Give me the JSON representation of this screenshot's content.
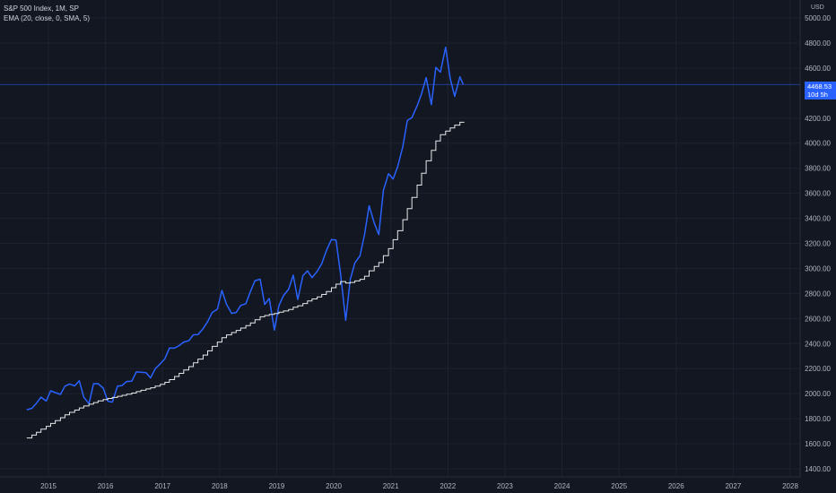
{
  "legend": {
    "symbol_line": "S&P 500 Index, 1M, SP",
    "indicator_line": "EMA (20, close, 0, SMA, 5)"
  },
  "price_axis": {
    "unit": "USD",
    "current_price": "4468.53",
    "countdown": "10d 5h"
  },
  "colors": {
    "background": "#131722",
    "price_line": "#2962ff",
    "ema_line": "#ffffff",
    "grid": "#1e2230",
    "axis_border": "#2a2e39",
    "badge": "#2962ff"
  },
  "chart_data": {
    "type": "line",
    "title": "S&P 500 Index, 1M, SP",
    "ylabel": "USD",
    "ylim": [
      1350,
      5050
    ],
    "xlim": [
      2014.6,
      2028.25
    ],
    "x_ticks": [
      "2015",
      "2016",
      "2017",
      "2018",
      "2019",
      "2020",
      "2021",
      "2022",
      "2023",
      "2024",
      "2025",
      "2026",
      "2027",
      "2028"
    ],
    "y_ticks": [
      "5000.00",
      "4800.00",
      "4600.00",
      "4200.00",
      "4000.00",
      "3800.00",
      "3600.00",
      "3400.00",
      "3200.00",
      "3000.00",
      "2800.00",
      "2600.00",
      "2400.00",
      "2200.00",
      "2000.00",
      "1800.00",
      "1600.00",
      "1400.00"
    ],
    "grid": true,
    "series": [
      {
        "name": "S&P 500 Index",
        "style": "line",
        "points": [
          [
            2014.62,
            1872
          ],
          [
            2014.71,
            1883
          ],
          [
            2014.79,
            1923
          ],
          [
            2014.87,
            1972
          ],
          [
            2014.96,
            1941
          ],
          [
            2015.04,
            2023
          ],
          [
            2015.12,
            2008
          ],
          [
            2015.21,
            1994
          ],
          [
            2015.29,
            2060
          ],
          [
            2015.37,
            2077
          ],
          [
            2015.46,
            2062
          ],
          [
            2015.54,
            2103
          ],
          [
            2015.62,
            1972
          ],
          [
            2015.71,
            1920
          ],
          [
            2015.79,
            2079
          ],
          [
            2015.87,
            2080
          ],
          [
            2015.96,
            2044
          ],
          [
            2016.04,
            1940
          ],
          [
            2016.12,
            1932
          ],
          [
            2016.21,
            2060
          ],
          [
            2016.29,
            2065
          ],
          [
            2016.37,
            2097
          ],
          [
            2016.46,
            2099
          ],
          [
            2016.54,
            2174
          ],
          [
            2016.62,
            2171
          ],
          [
            2016.71,
            2168
          ],
          [
            2016.79,
            2126
          ],
          [
            2016.87,
            2199
          ],
          [
            2016.96,
            2239
          ],
          [
            2017.04,
            2279
          ],
          [
            2017.12,
            2364
          ],
          [
            2017.21,
            2363
          ],
          [
            2017.29,
            2384
          ],
          [
            2017.37,
            2412
          ],
          [
            2017.46,
            2423
          ],
          [
            2017.54,
            2470
          ],
          [
            2017.62,
            2472
          ],
          [
            2017.71,
            2519
          ],
          [
            2017.79,
            2575
          ],
          [
            2017.87,
            2648
          ],
          [
            2017.96,
            2674
          ],
          [
            2018.04,
            2824
          ],
          [
            2018.12,
            2714
          ],
          [
            2018.21,
            2641
          ],
          [
            2018.29,
            2648
          ],
          [
            2018.37,
            2705
          ],
          [
            2018.46,
            2718
          ],
          [
            2018.54,
            2816
          ],
          [
            2018.62,
            2902
          ],
          [
            2018.71,
            2914
          ],
          [
            2018.79,
            2712
          ],
          [
            2018.87,
            2760
          ],
          [
            2018.96,
            2507
          ],
          [
            2019.04,
            2704
          ],
          [
            2019.12,
            2784
          ],
          [
            2019.21,
            2834
          ],
          [
            2019.29,
            2946
          ],
          [
            2019.37,
            2752
          ],
          [
            2019.46,
            2942
          ],
          [
            2019.54,
            2980
          ],
          [
            2019.62,
            2926
          ],
          [
            2019.71,
            2977
          ],
          [
            2019.79,
            3038
          ],
          [
            2019.87,
            3141
          ],
          [
            2019.96,
            3231
          ],
          [
            2020.04,
            3226
          ],
          [
            2020.12,
            2954
          ],
          [
            2020.21,
            2585
          ],
          [
            2020.29,
            2912
          ],
          [
            2020.37,
            3044
          ],
          [
            2020.46,
            3100
          ],
          [
            2020.54,
            3271
          ],
          [
            2020.62,
            3500
          ],
          [
            2020.71,
            3363
          ],
          [
            2020.79,
            3270
          ],
          [
            2020.87,
            3622
          ],
          [
            2020.96,
            3756
          ],
          [
            2021.04,
            3714
          ],
          [
            2021.12,
            3811
          ],
          [
            2021.21,
            3973
          ],
          [
            2021.29,
            4181
          ],
          [
            2021.37,
            4204
          ],
          [
            2021.46,
            4298
          ],
          [
            2021.54,
            4395
          ],
          [
            2021.62,
            4523
          ],
          [
            2021.71,
            4308
          ],
          [
            2021.79,
            4605
          ],
          [
            2021.87,
            4567
          ],
          [
            2021.96,
            4766
          ],
          [
            2022.04,
            4516
          ],
          [
            2022.12,
            4374
          ],
          [
            2022.21,
            4530
          ],
          [
            2022.27,
            4468
          ]
        ]
      },
      {
        "name": "EMA (20, close, 0, SMA, 5)",
        "style": "step",
        "points": [
          [
            2014.62,
            1646
          ],
          [
            2014.71,
            1669
          ],
          [
            2014.79,
            1692
          ],
          [
            2014.87,
            1716
          ],
          [
            2014.96,
            1739
          ],
          [
            2015.04,
            1762
          ],
          [
            2015.12,
            1785
          ],
          [
            2015.21,
            1808
          ],
          [
            2015.29,
            1831
          ],
          [
            2015.37,
            1851
          ],
          [
            2015.46,
            1869
          ],
          [
            2015.54,
            1886
          ],
          [
            2015.62,
            1902
          ],
          [
            2015.71,
            1916
          ],
          [
            2015.79,
            1929
          ],
          [
            2015.87,
            1942
          ],
          [
            2015.96,
            1953
          ],
          [
            2016.04,
            1962
          ],
          [
            2016.12,
            1970
          ],
          [
            2016.21,
            1979
          ],
          [
            2016.29,
            1987
          ],
          [
            2016.37,
            1996
          ],
          [
            2016.46,
            2005
          ],
          [
            2016.54,
            2016
          ],
          [
            2016.62,
            2027
          ],
          [
            2016.71,
            2038
          ],
          [
            2016.79,
            2047
          ],
          [
            2016.87,
            2060
          ],
          [
            2016.96,
            2075
          ],
          [
            2017.04,
            2091
          ],
          [
            2017.12,
            2112
          ],
          [
            2017.21,
            2137
          ],
          [
            2017.29,
            2162
          ],
          [
            2017.37,
            2189
          ],
          [
            2017.46,
            2216
          ],
          [
            2017.54,
            2246
          ],
          [
            2017.62,
            2276
          ],
          [
            2017.71,
            2308
          ],
          [
            2017.79,
            2342
          ],
          [
            2017.87,
            2378
          ],
          [
            2017.96,
            2412
          ],
          [
            2018.04,
            2447
          ],
          [
            2018.12,
            2469
          ],
          [
            2018.21,
            2488
          ],
          [
            2018.29,
            2505
          ],
          [
            2018.37,
            2524
          ],
          [
            2018.46,
            2544
          ],
          [
            2018.54,
            2565
          ],
          [
            2018.62,
            2590
          ],
          [
            2018.71,
            2614
          ],
          [
            2018.79,
            2624
          ],
          [
            2018.87,
            2633
          ],
          [
            2018.96,
            2640
          ],
          [
            2019.04,
            2650
          ],
          [
            2019.12,
            2660
          ],
          [
            2019.21,
            2672
          ],
          [
            2019.29,
            2690
          ],
          [
            2019.37,
            2702
          ],
          [
            2019.46,
            2720
          ],
          [
            2019.54,
            2740
          ],
          [
            2019.62,
            2756
          ],
          [
            2019.71,
            2773
          ],
          [
            2019.79,
            2792
          ],
          [
            2019.87,
            2816
          ],
          [
            2019.96,
            2846
          ],
          [
            2020.04,
            2874
          ],
          [
            2020.12,
            2895
          ],
          [
            2020.21,
            2884
          ],
          [
            2020.29,
            2888
          ],
          [
            2020.37,
            2900
          ],
          [
            2020.46,
            2913
          ],
          [
            2020.54,
            2938
          ],
          [
            2020.62,
            2981
          ],
          [
            2020.71,
            3015
          ],
          [
            2020.79,
            3047
          ],
          [
            2020.87,
            3102
          ],
          [
            2020.96,
            3158
          ],
          [
            2021.04,
            3229
          ],
          [
            2021.12,
            3301
          ],
          [
            2021.21,
            3389
          ],
          [
            2021.29,
            3478
          ],
          [
            2021.37,
            3567
          ],
          [
            2021.46,
            3665
          ],
          [
            2021.54,
            3760
          ],
          [
            2021.62,
            3859
          ],
          [
            2021.71,
            3943
          ],
          [
            2021.79,
            4017
          ],
          [
            2021.87,
            4068
          ],
          [
            2021.96,
            4096
          ],
          [
            2022.04,
            4121
          ],
          [
            2022.12,
            4144
          ],
          [
            2022.21,
            4167
          ]
        ]
      }
    ],
    "last_value_line": 4468.53
  }
}
